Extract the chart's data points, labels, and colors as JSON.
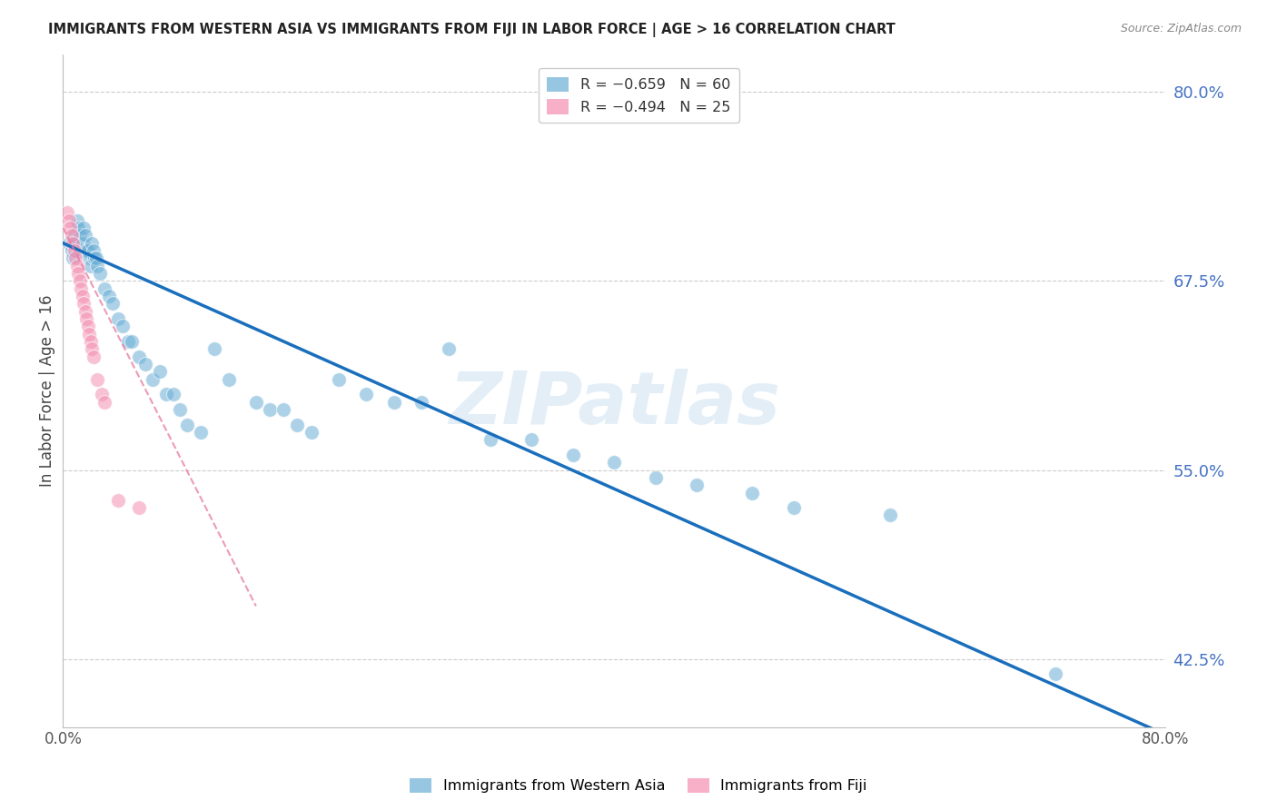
{
  "title": "IMMIGRANTS FROM WESTERN ASIA VS IMMIGRANTS FROM FIJI IN LABOR FORCE | AGE > 16 CORRELATION CHART",
  "source": "Source: ZipAtlas.com",
  "ylabel": "In Labor Force | Age > 16",
  "y_ticks": [
    0.425,
    0.55,
    0.675,
    0.8
  ],
  "y_tick_labels": [
    "42.5%",
    "55.0%",
    "67.5%",
    "80.0%"
  ],
  "xlim": [
    0.0,
    0.8
  ],
  "ylim": [
    0.38,
    0.825
  ],
  "blue_color": "#6baed6",
  "pink_color": "#f48fb1",
  "trend_blue": "#1a6fbd",
  "trend_pink": "#e878a0",
  "watermark": "ZIPatlas",
  "wa_x": [
    0.004,
    0.006,
    0.007,
    0.008,
    0.009,
    0.01,
    0.011,
    0.012,
    0.013,
    0.014,
    0.015,
    0.016,
    0.017,
    0.018,
    0.019,
    0.02,
    0.021,
    0.022,
    0.023,
    0.024,
    0.025,
    0.027,
    0.03,
    0.033,
    0.036,
    0.04,
    0.043,
    0.047,
    0.05,
    0.055,
    0.06,
    0.065,
    0.07,
    0.075,
    0.08,
    0.085,
    0.09,
    0.1,
    0.11,
    0.12,
    0.14,
    0.15,
    0.16,
    0.17,
    0.18,
    0.2,
    0.22,
    0.24,
    0.26,
    0.28,
    0.31,
    0.34,
    0.37,
    0.4,
    0.43,
    0.46,
    0.5,
    0.53,
    0.6,
    0.72
  ],
  "wa_y": [
    0.7,
    0.695,
    0.69,
    0.705,
    0.7,
    0.715,
    0.71,
    0.705,
    0.695,
    0.7,
    0.71,
    0.705,
    0.695,
    0.695,
    0.69,
    0.685,
    0.7,
    0.695,
    0.69,
    0.69,
    0.685,
    0.68,
    0.67,
    0.665,
    0.66,
    0.65,
    0.645,
    0.635,
    0.635,
    0.625,
    0.62,
    0.61,
    0.615,
    0.6,
    0.6,
    0.59,
    0.58,
    0.575,
    0.63,
    0.61,
    0.595,
    0.59,
    0.59,
    0.58,
    0.575,
    0.61,
    0.6,
    0.595,
    0.595,
    0.63,
    0.57,
    0.57,
    0.56,
    0.555,
    0.545,
    0.54,
    0.535,
    0.525,
    0.52,
    0.415
  ],
  "fiji_x": [
    0.003,
    0.004,
    0.005,
    0.006,
    0.007,
    0.008,
    0.009,
    0.01,
    0.011,
    0.012,
    0.013,
    0.014,
    0.015,
    0.016,
    0.017,
    0.018,
    0.019,
    0.02,
    0.021,
    0.022,
    0.025,
    0.028,
    0.03,
    0.04,
    0.055
  ],
  "fiji_y": [
    0.72,
    0.715,
    0.71,
    0.705,
    0.7,
    0.695,
    0.69,
    0.685,
    0.68,
    0.675,
    0.67,
    0.665,
    0.66,
    0.655,
    0.65,
    0.645,
    0.64,
    0.635,
    0.63,
    0.625,
    0.61,
    0.6,
    0.595,
    0.53,
    0.525
  ],
  "blue_line_x0": 0.0,
  "blue_line_x1": 0.8,
  "blue_line_y0": 0.7,
  "blue_line_y1": 0.375,
  "pink_line_x0": 0.0,
  "pink_line_x1": 0.14,
  "pink_line_y0": 0.71,
  "pink_line_y1": 0.46
}
